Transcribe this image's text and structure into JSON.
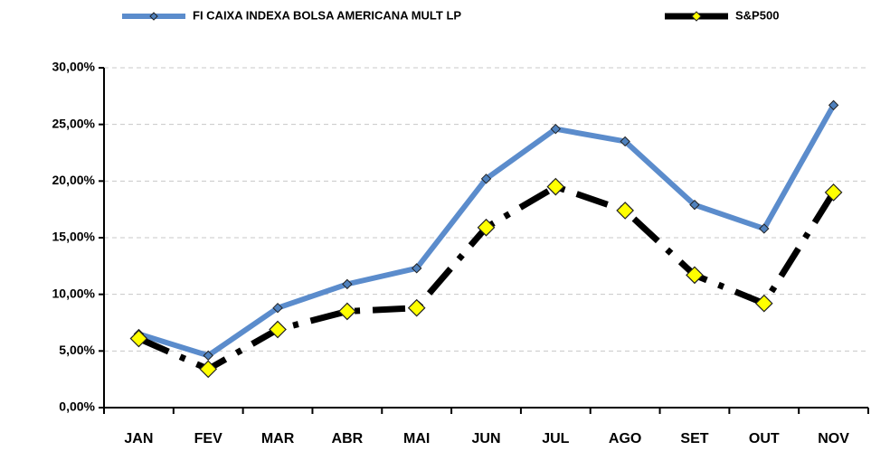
{
  "chart_data": {
    "type": "line",
    "categories": [
      "JAN",
      "FEV",
      "MAR",
      "ABR",
      "MAI",
      "JUN",
      "JUL",
      "AGO",
      "SET",
      "OUT",
      "NOV"
    ],
    "series": [
      {
        "name": "FI CAIXA INDEXA BOLSA AMERICANA MULT LP",
        "color": "#5b8ccc",
        "marker_color": "#4f81bd",
        "values": [
          6.5,
          4.6,
          8.8,
          10.9,
          12.3,
          20.2,
          24.6,
          23.5,
          17.9,
          15.8,
          26.7
        ]
      },
      {
        "name": "S&P500",
        "color": "#000000",
        "marker_color": "#ffff00",
        "line_style": "dash-dot",
        "values": [
          6.1,
          3.4,
          6.9,
          8.5,
          8.8,
          15.9,
          19.5,
          17.4,
          11.7,
          9.2,
          19.0
        ]
      }
    ],
    "ylim": [
      0,
      30
    ],
    "yticks": [
      {
        "value": 0,
        "label": "0,00%"
      },
      {
        "value": 5,
        "label": "5,00%"
      },
      {
        "value": 10,
        "label": "10,00%"
      },
      {
        "value": 15,
        "label": "15,00%"
      },
      {
        "value": 20,
        "label": "20,00%"
      },
      {
        "value": 25,
        "label": "25,00%"
      },
      {
        "value": 30,
        "label": "30,00%"
      }
    ],
    "grid": true,
    "legend": "top"
  }
}
